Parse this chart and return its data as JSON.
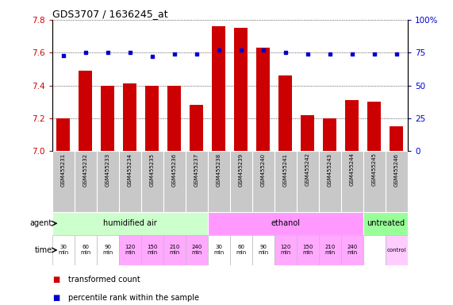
{
  "title": "GDS3707 / 1636245_at",
  "samples": [
    "GSM455231",
    "GSM455232",
    "GSM455233",
    "GSM455234",
    "GSM455235",
    "GSM455236",
    "GSM455237",
    "GSM455238",
    "GSM455239",
    "GSM455240",
    "GSM455241",
    "GSM455242",
    "GSM455243",
    "GSM455244",
    "GSM455245",
    "GSM455246"
  ],
  "bar_values": [
    7.2,
    7.49,
    7.4,
    7.41,
    7.4,
    7.4,
    7.28,
    7.76,
    7.75,
    7.63,
    7.46,
    7.22,
    7.2,
    7.31,
    7.3,
    7.15
  ],
  "percentile_values": [
    73,
    75,
    75,
    75,
    72,
    74,
    74,
    77,
    77,
    77,
    75,
    74,
    74,
    74,
    74,
    74
  ],
  "ylim": [
    7.0,
    7.8
  ],
  "yticks": [
    7.0,
    7.2,
    7.4,
    7.6,
    7.8
  ],
  "right_yticks": [
    0,
    25,
    50,
    75,
    100
  ],
  "right_ylim": [
    0,
    100
  ],
  "bar_color": "#cc0000",
  "dot_color": "#0000cc",
  "bar_width": 0.6,
  "agent_groups": [
    {
      "label": "humidified air",
      "start": 0,
      "end": 7,
      "color": "#ccffcc"
    },
    {
      "label": "ethanol",
      "start": 7,
      "end": 14,
      "color": "#ff99ff"
    },
    {
      "label": "untreated",
      "start": 14,
      "end": 16,
      "color": "#99ff99"
    }
  ],
  "time_labels": [
    "30\nmin",
    "60\nmin",
    "90\nmin",
    "120\nmin",
    "150\nmin",
    "210\nmin",
    "240\nmin",
    "30\nmin",
    "60\nmin",
    "90\nmin",
    "120\nmin",
    "150\nmin",
    "210\nmin",
    "240\nmin",
    "",
    "control"
  ],
  "time_colors": [
    "#ffffff",
    "#ffffff",
    "#ffffff",
    "#ffaaff",
    "#ffaaff",
    "#ffaaff",
    "#ffaaff",
    "#ffffff",
    "#ffffff",
    "#ffffff",
    "#ffaaff",
    "#ffaaff",
    "#ffaaff",
    "#ffaaff",
    "#ffffff",
    "#ffccff"
  ],
  "legend_items": [
    {
      "color": "#cc0000",
      "label": "transformed count"
    },
    {
      "color": "#0000cc",
      "label": "percentile rank within the sample"
    }
  ],
  "xlabel_agent": "agent",
  "xlabel_time": "time",
  "background_color": "#ffffff",
  "plot_bg": "#ffffff",
  "grid_color": "#000000",
  "label_color_red": "#cc0000",
  "label_color_blue": "#0000cc",
  "sample_bg": "#c8c8c8"
}
